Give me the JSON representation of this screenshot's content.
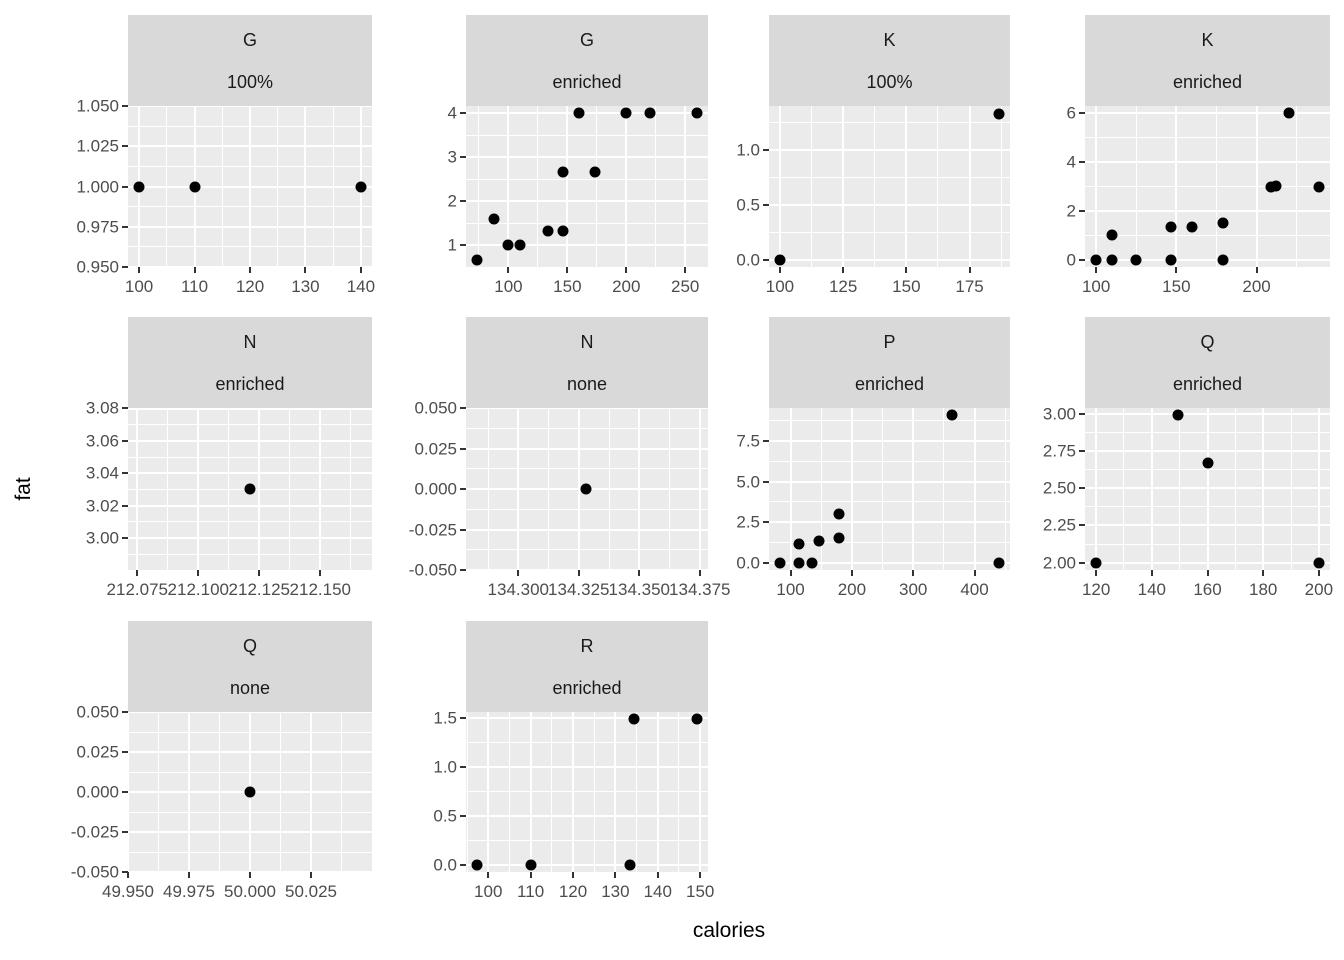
{
  "chart_data": {
    "type": "scatter",
    "xlabel": "calories",
    "ylabel": "fat",
    "grid": "on",
    "legend": "none",
    "point_color": "#000000",
    "colors": {
      "strip_fill": "#d9d9d9",
      "panel_fill": "#ebebeb",
      "gridline": "#ffffff",
      "tick_label_text": "#4d4d4d",
      "strip_text": "#1a1a1a",
      "axis_title_text": "#000000",
      "tick_mark": "#333333",
      "background": "#ffffff"
    },
    "facets": [
      {
        "strip": [
          "G",
          "100%"
        ],
        "row": 0,
        "col": 0,
        "x": {
          "domain": [
            98,
            142
          ],
          "tick_values": [
            100,
            110,
            120,
            130,
            140
          ],
          "tick_labels": [
            "100",
            "110",
            "120",
            "130",
            "140"
          ]
        },
        "y": {
          "domain": [
            0.95,
            1.05
          ],
          "tick_values": [
            0.95,
            0.975,
            1.0,
            1.025,
            1.05
          ],
          "tick_labels": [
            "0.950",
            "0.975",
            "1.000",
            "1.025",
            "1.050"
          ]
        },
        "points": [
          [
            100,
            1
          ],
          [
            110,
            1
          ],
          [
            140,
            1
          ]
        ]
      },
      {
        "strip": [
          "G",
          "enriched"
        ],
        "row": 0,
        "col": 1,
        "x": {
          "domain": [
            64,
            269.33
          ],
          "tick_values": [
            100,
            150,
            200,
            250
          ],
          "tick_labels": [
            "100",
            "150",
            "200",
            "250"
          ]
        },
        "y": {
          "domain": [
            0.5,
            4.167
          ],
          "tick_values": [
            1,
            2,
            3,
            4
          ],
          "tick_labels": [
            "1",
            "2",
            "3",
            "4"
          ]
        },
        "points": [
          [
            73.33,
            0.67
          ],
          [
            88,
            1.6
          ],
          [
            100,
            1
          ],
          [
            110,
            1
          ],
          [
            133.33,
            1.33
          ],
          [
            146.67,
            1.33
          ],
          [
            146.67,
            2.67
          ],
          [
            160,
            4
          ],
          [
            173.33,
            2.67
          ],
          [
            200,
            4
          ],
          [
            220,
            4
          ],
          [
            260,
            4
          ]
        ]
      },
      {
        "strip": [
          "K",
          "100%"
        ],
        "row": 0,
        "col": 2,
        "x": {
          "domain": [
            95.67,
            191
          ],
          "tick_values": [
            100,
            125,
            150,
            175
          ],
          "tick_labels": [
            "100",
            "125",
            "150",
            "175"
          ]
        },
        "y": {
          "domain": [
            -0.067,
            1.4
          ],
          "tick_values": [
            0,
            0.5,
            1.0
          ],
          "tick_labels": [
            "0.0",
            "0.5",
            "1.0"
          ]
        },
        "points": [
          [
            100,
            0
          ],
          [
            186.67,
            1.33
          ]
        ]
      },
      {
        "strip": [
          "K",
          "enriched"
        ],
        "row": 0,
        "col": 3,
        "x": {
          "domain": [
            93.06,
            245.75
          ],
          "tick_values": [
            100,
            150,
            200
          ],
          "tick_labels": [
            "100",
            "150",
            "200"
          ]
        },
        "y": {
          "domain": [
            -0.3,
            6.3
          ],
          "tick_values": [
            0,
            2,
            4,
            6
          ],
          "tick_labels": [
            "0",
            "2",
            "4",
            "6"
          ]
        },
        "points": [
          [
            100,
            0
          ],
          [
            110,
            0
          ],
          [
            110,
            1
          ],
          [
            125,
            0
          ],
          [
            146.67,
            0
          ],
          [
            146.67,
            1.33
          ],
          [
            160,
            1.33
          ],
          [
            179.1,
            0
          ],
          [
            179.1,
            1.49
          ],
          [
            208.96,
            2.99
          ],
          [
            212.12,
            3.03
          ],
          [
            220,
            6
          ],
          [
            238.81,
            2.99
          ]
        ]
      },
      {
        "strip": [
          "N",
          "enriched"
        ],
        "row": 1,
        "col": 0,
        "x": {
          "domain": [
            212.0712,
            212.1712
          ],
          "tick_values": [
            212.075,
            212.1,
            212.125,
            212.15
          ],
          "tick_labels": [
            "212.075",
            "212.100",
            "212.125",
            "212.150"
          ]
        },
        "y": {
          "domain": [
            2.9803,
            3.0803
          ],
          "tick_values": [
            3.0,
            3.02,
            3.04,
            3.06,
            3.08
          ],
          "tick_labels": [
            "3.00",
            "3.02",
            "3.04",
            "3.06",
            "3.08"
          ]
        },
        "points": [
          [
            212.121,
            3.03
          ]
        ]
      },
      {
        "strip": [
          "N",
          "none"
        ],
        "row": 1,
        "col": 1,
        "x": {
          "domain": [
            134.2784,
            134.3784
          ],
          "tick_values": [
            134.3,
            134.325,
            134.35,
            134.375
          ],
          "tick_labels": [
            "134.300",
            "134.325",
            "134.350",
            "134.375"
          ]
        },
        "y": {
          "domain": [
            -0.05,
            0.05
          ],
          "tick_values": [
            -0.05,
            -0.025,
            0,
            0.025,
            0.05
          ],
          "tick_labels": [
            "-0.050",
            "-0.025",
            "0.000",
            "0.025",
            "0.050"
          ]
        },
        "points": [
          [
            134.328,
            0
          ]
        ]
      },
      {
        "strip": [
          "P",
          "enriched"
        ],
        "row": 1,
        "col": 2,
        "x": {
          "domain": [
            64.84,
            457.86
          ],
          "tick_values": [
            100,
            200,
            300,
            400
          ],
          "tick_labels": [
            "100",
            "200",
            "300",
            "400"
          ]
        },
        "y": {
          "domain": [
            -0.455,
            9.545
          ],
          "tick_values": [
            0,
            2.5,
            5.0,
            7.5
          ],
          "tick_labels": [
            "0.0",
            "2.5",
            "5.0",
            "7.5"
          ]
        },
        "points": [
          [
            82.71,
            0
          ],
          [
            113.64,
            0
          ],
          [
            113.64,
            1.14
          ],
          [
            134.33,
            0
          ],
          [
            146.67,
            1.33
          ],
          [
            179.1,
            1.49
          ],
          [
            179.1,
            2.99
          ],
          [
            363.64,
            9.09
          ],
          [
            440,
            0
          ]
        ]
      },
      {
        "strip": [
          "Q",
          "enriched"
        ],
        "row": 1,
        "col": 3,
        "x": {
          "domain": [
            116,
            204
          ],
          "tick_values": [
            120,
            140,
            160,
            180,
            200
          ],
          "tick_labels": [
            "120",
            "140",
            "160",
            "180",
            "200"
          ]
        },
        "y": {
          "domain": [
            1.9503,
            3.0398
          ],
          "tick_values": [
            2.0,
            2.25,
            2.5,
            2.75,
            3.0
          ],
          "tick_labels": [
            "2.00",
            "2.25",
            "2.50",
            "2.75",
            "3.00"
          ]
        },
        "points": [
          [
            120,
            2
          ],
          [
            149.25,
            2.99
          ],
          [
            160,
            2.67
          ],
          [
            200,
            2
          ]
        ]
      },
      {
        "strip": [
          "Q",
          "none"
        ],
        "row": 2,
        "col": 0,
        "x": {
          "domain": [
            49.95,
            50.05
          ],
          "tick_values": [
            49.95,
            49.975,
            50.0,
            50.025
          ],
          "tick_labels": [
            "49.950",
            "49.975",
            "50.000",
            "50.025"
          ]
        },
        "y": {
          "domain": [
            -0.05,
            0.05
          ],
          "tick_values": [
            -0.05,
            -0.025,
            0,
            0.025,
            0.05
          ],
          "tick_labels": [
            "-0.050",
            "-0.025",
            "0.000",
            "0.025",
            "0.050"
          ]
        },
        "points": [
          [
            50,
            0
          ]
        ]
      },
      {
        "strip": [
          "R",
          "enriched"
        ],
        "row": 2,
        "col": 1,
        "x": {
          "domain": [
            94.755,
            151.845
          ],
          "tick_values": [
            100,
            110,
            120,
            130,
            140,
            150
          ],
          "tick_labels": [
            "100",
            "110",
            "120",
            "130",
            "140",
            "150"
          ]
        },
        "y": {
          "domain": [
            -0.0746,
            1.5646
          ],
          "tick_values": [
            0,
            0.5,
            1.0,
            1.5
          ],
          "tick_labels": [
            "0.0",
            "0.5",
            "1.0",
            "1.5"
          ]
        },
        "points": [
          [
            97.35,
            0
          ],
          [
            110,
            0
          ],
          [
            133.33,
            0
          ],
          [
            134.33,
            1.49
          ],
          [
            149.25,
            1.49
          ]
        ]
      }
    ]
  }
}
